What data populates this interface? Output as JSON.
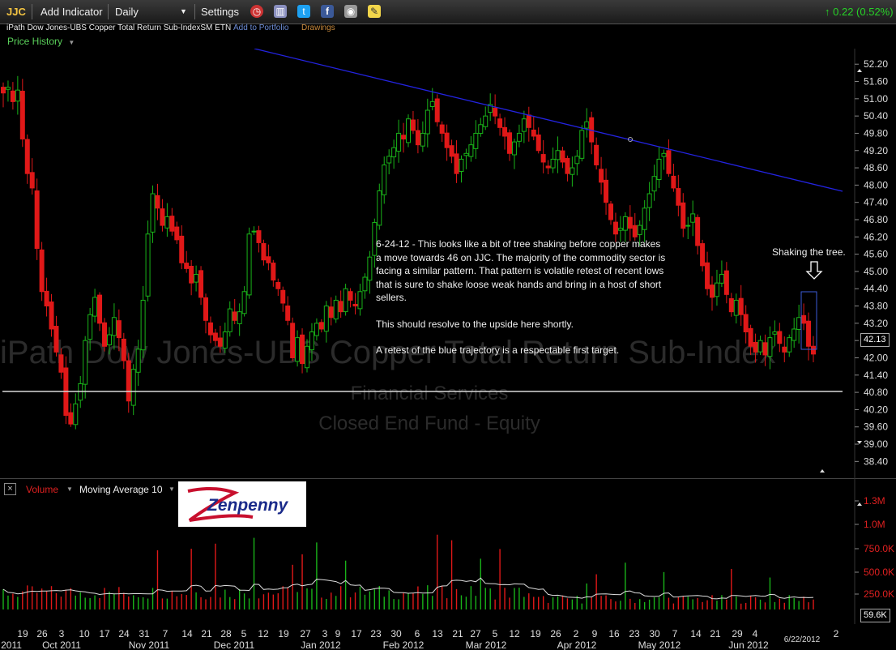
{
  "toolbar": {
    "ticker": "JJC",
    "add_indicator": "Add Indicator",
    "interval": "Daily",
    "settings": "Settings",
    "change": "0.22 (0.52%)",
    "change_color": "#27d227",
    "icons": [
      "alarm-icon",
      "comparison-icon",
      "twitter-icon",
      "facebook-icon",
      "camera-icon",
      "notes-icon"
    ]
  },
  "infobar": {
    "security_name": "iPath Dow Jones-UBS Copper Total Return Sub-IndexSM ETN",
    "add_to_portfolio": "Add to Portfolio",
    "drawings": "Drawings"
  },
  "price_panel": {
    "label": "Price History",
    "watermark_name": "iPath Dow Jones-UBS Copper Total Return Sub-Index",
    "watermark_sector": "Financial Services",
    "watermark_industry": "Closed End Fund - Equity",
    "last_price": "42.13",
    "annotation": {
      "paragraph1": "6-24-12 - This looks like a bit of tree shaking before copper makes a move towards 46 on JJC. The majority of the commodity sector is facing a similar pattern. That pattern is volatile retest of recent lows that is sure to shake loose weak hands and bring in a host of short sellers.",
      "paragraph2": "This should resolve to the upside here shortly.",
      "paragraph3": "A retest of the blue trajectory is a respectable first target.",
      "callout": "Shaking the tree."
    }
  },
  "volume_panel": {
    "volume_label": "Volume",
    "ma_label": "Moving Average 10",
    "last_volume": "59.6K",
    "logo_text": "Zenpenny"
  },
  "chart_data": {
    "type": "candlestick",
    "price_axis": {
      "ticks": [
        "52.20",
        "51.60",
        "51.00",
        "50.40",
        "49.80",
        "49.20",
        "48.60",
        "48.00",
        "47.40",
        "46.80",
        "46.20",
        "45.60",
        "45.00",
        "44.40",
        "43.80",
        "43.20",
        "42.60",
        "42.00",
        "41.40",
        "40.80",
        "40.20",
        "39.60",
        "39.00",
        "38.40"
      ],
      "ylim": [
        38.1,
        52.6
      ]
    },
    "volume_axis": {
      "ticks": [
        "1.3M",
        "1.0M",
        "750.0K",
        "500.0K",
        "250.0K"
      ]
    },
    "x_axis": {
      "day_ticks": [
        "19",
        "26",
        "3",
        "10",
        "17",
        "24",
        "31",
        "7",
        "14",
        "21",
        "28",
        "5",
        "12",
        "19",
        "27",
        "3",
        "9",
        "17",
        "23",
        "30",
        "6",
        "13",
        "21",
        "27",
        "5",
        "12",
        "19",
        "26",
        "2",
        "9",
        "16",
        "23",
        "30",
        "7",
        "14",
        "21",
        "29",
        "4",
        "2"
      ],
      "month_labels": [
        "2011",
        "Oct 2011",
        "Nov 2011",
        "Dec 2011",
        "Jan 2012",
        "Feb 2012",
        "Mar 2012",
        "Apr 2012",
        "May 2012",
        "Jun 2012"
      ],
      "cursor_date": "6/22/2012"
    },
    "closes": [
      51.2,
      51.4,
      50.9,
      51.3,
      49.6,
      48.4,
      47.9,
      45.8,
      44.3,
      43.8,
      43.0,
      42.2,
      41.5,
      40.0,
      39.7,
      40.4,
      41.1,
      42.6,
      43.5,
      44.1,
      43.2,
      42.4,
      42.8,
      43.4,
      42.7,
      41.9,
      40.5,
      41.6,
      42.3,
      44.0,
      46.3,
      47.7,
      47.2,
      46.6,
      46.9,
      46.4,
      46.1,
      45.3,
      45.1,
      44.6,
      44.9,
      44.1,
      43.3,
      42.8,
      42.6,
      42.4,
      42.9,
      43.7,
      43.3,
      43.6,
      44.3,
      46.3,
      46.4,
      46.0,
      45.4,
      45.3,
      44.7,
      44.4,
      43.9,
      43.3,
      42.0,
      42.7,
      41.8,
      42.4,
      42.9,
      43.2,
      43.0,
      43.8,
      43.4,
      44.0,
      43.6,
      44.4,
      44.0,
      43.8,
      44.3,
      44.8,
      45.5,
      46.7,
      47.8,
      48.7,
      49.0,
      49.3,
      49.8,
      49.6,
      50.3,
      49.9,
      49.4,
      49.8,
      50.6,
      50.9,
      50.2,
      49.8,
      49.3,
      49.0,
      48.4,
      48.9,
      49.1,
      49.4,
      49.8,
      50.1,
      50.4,
      50.8,
      50.4,
      50.0,
      49.7,
      49.1,
      49.5,
      49.8,
      50.3,
      50.0,
      49.7,
      49.2,
      48.8,
      48.6,
      48.9,
      49.2,
      48.8,
      48.4,
      48.6,
      49.0,
      49.9,
      50.2,
      49.5,
      48.7,
      48.1,
      47.4,
      46.8,
      46.3,
      46.5,
      46.9,
      46.5,
      46.2,
      46.6,
      47.2,
      47.7,
      48.3,
      48.9,
      49.1,
      48.4,
      47.9,
      47.3,
      46.5,
      46.6,
      47.0,
      45.9,
      45.2,
      44.4,
      44.1,
      44.6,
      44.9,
      44.2,
      43.6,
      44.0,
      43.5,
      42.9,
      42.4,
      42.2,
      42.6,
      42.1,
      42.7,
      42.9,
      42.5,
      42.2,
      42.7,
      43.0,
      43.4,
      43.2,
      42.4,
      42.13
    ]
  }
}
